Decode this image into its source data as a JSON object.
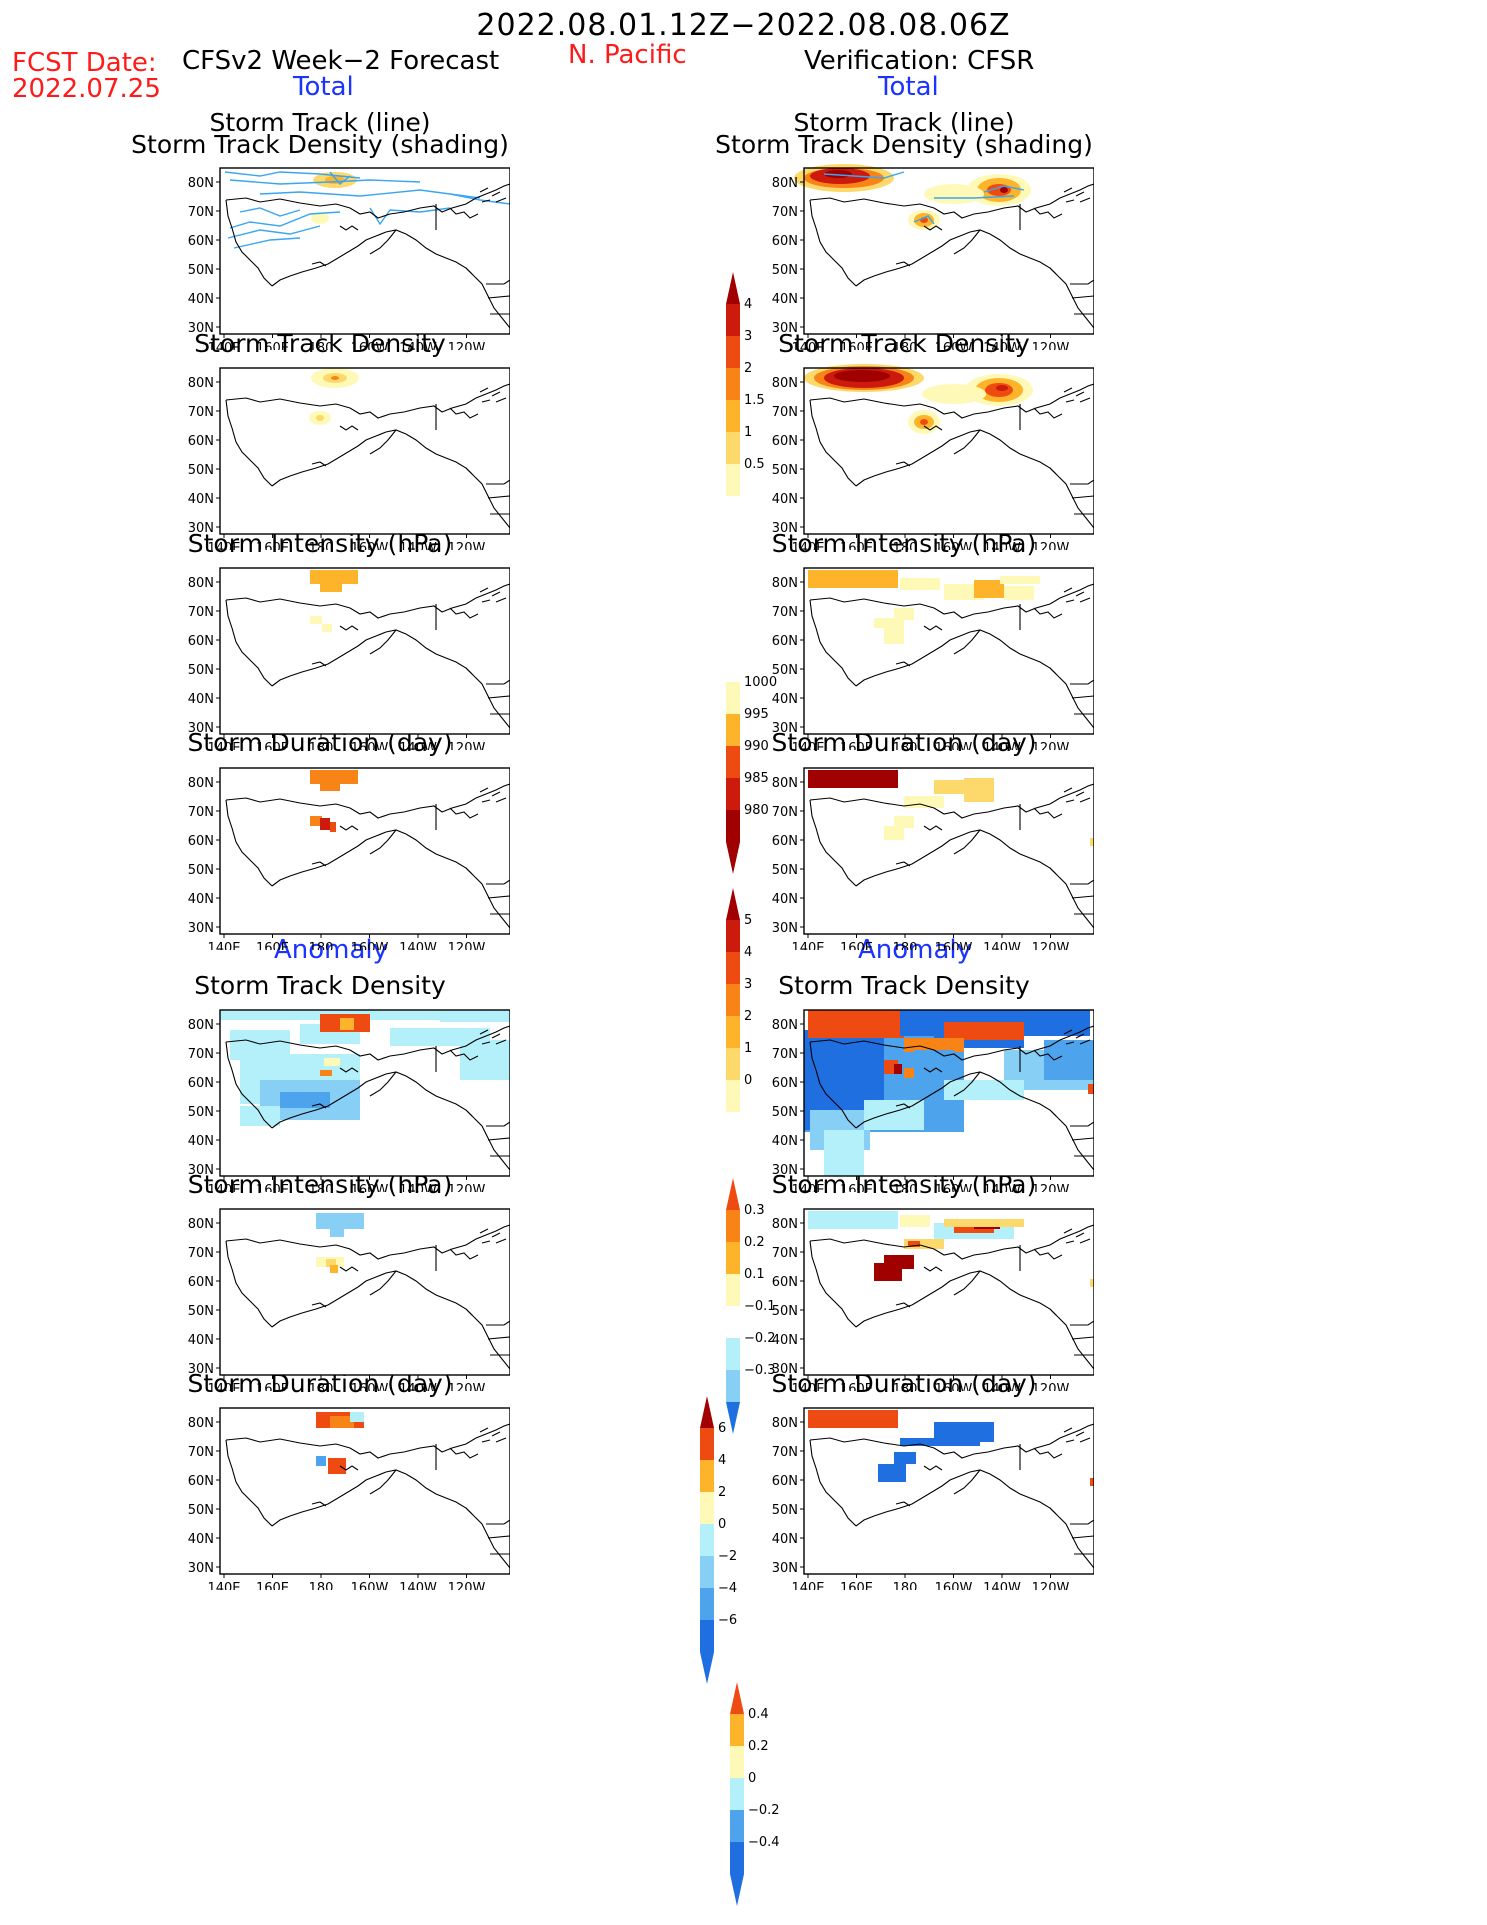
{
  "header": {
    "date_range": "2022.08.01.12Z−2022.08.08.06Z",
    "region": "N. Pacific",
    "fcst_label": "FCST Date:",
    "fcst_date": "2022.07.25",
    "left_title": "CFSv2 Week−2 Forecast",
    "right_title": "Verification: CFSR",
    "total_label": "Total",
    "anomaly_label": "Anomaly"
  },
  "panel_titles": {
    "track_line": "Storm Track (line)",
    "track_density_shading": "Storm Track Density (shading)",
    "track_density": "Storm Track Density",
    "intensity": "Storm Intensity (hPa)",
    "duration": "Storm Duration (day)"
  },
  "axes": {
    "lat_labels": [
      "80N",
      "70N",
      "60N",
      "50N",
      "40N",
      "30N"
    ],
    "lon_labels": [
      "140E",
      "160E",
      "180",
      "160W",
      "140W",
      "120W"
    ]
  },
  "colorbars": {
    "density": [
      "4",
      "3",
      "2",
      "1.5",
      "1",
      "0.5"
    ],
    "intensity": [
      "1000",
      "995",
      "990",
      "985",
      "980"
    ],
    "duration": [
      "5",
      "4",
      "3",
      "2",
      "1",
      "0"
    ],
    "density_anom": [
      "0.3",
      "0.2",
      "0.1",
      "−0.1",
      "−0.2",
      "−0.3"
    ],
    "intensity_anom": [
      "6",
      "4",
      "2",
      "0",
      "−2",
      "−4",
      "−6"
    ],
    "duration_anom": [
      "0.4",
      "0.2",
      "0",
      "−0.2",
      "−0.4"
    ]
  },
  "colors": {
    "title_red": "#ff1a1a",
    "title_blue": "#1a33ff",
    "pos_scale": [
      "#fff9b8",
      "#fdd86a",
      "#fdb32a",
      "#f88418",
      "#ee4b12",
      "#cc1a0c",
      "#a00000"
    ],
    "neg_scale": [
      "#b4f0fa",
      "#87cff5",
      "#4da3ec",
      "#1f6fe0"
    ]
  }
}
